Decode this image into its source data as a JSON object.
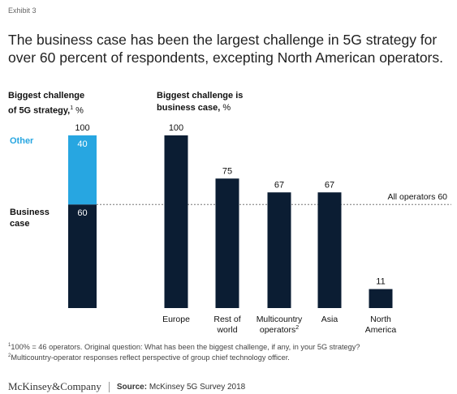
{
  "exhibit": "Exhibit 3",
  "title": "The business case has been the largest challenge in 5G strategy for over 60 percent of respondents, excepting North American operators.",
  "left_panel": {
    "heading_line1": "Biggest challenge",
    "heading_line2": "of 5G strategy,",
    "heading_sup": "1",
    "heading_unit": " %"
  },
  "right_panel": {
    "heading_line1": "Biggest challenge is",
    "heading_line2": "business case,",
    "heading_unit": " %"
  },
  "footnotes": {
    "fn1_marker": "1",
    "fn1": "100% = 46 operators. Original question: What has been the biggest challenge, if any, in your 5G strategy?",
    "fn2_marker": "2",
    "fn2": "Multicountry-operator responses reflect perspective of group chief technology officer."
  },
  "footer": {
    "brand": "McKinsey&Company",
    "source_label": "Source:",
    "source_text": "McKinsey 5G Survey 2018"
  },
  "colors": {
    "navy": "#0b1d33",
    "cyan": "#27a6e1",
    "other_label": "#27a6e1",
    "text": "#111111"
  },
  "chart_data": [
    {
      "type": "bar",
      "stacked": true,
      "categories": [
        ""
      ],
      "ylim": [
        0,
        100
      ],
      "total_label": "100",
      "series": [
        {
          "name": "Business case",
          "values": [
            60
          ],
          "label": "60",
          "color": "#0b1d33",
          "legend_lines": [
            "Business",
            "case"
          ]
        },
        {
          "name": "Other",
          "values": [
            40
          ],
          "label": "40",
          "color": "#27a6e1",
          "legend_lines": [
            "Other"
          ]
        }
      ]
    },
    {
      "type": "bar",
      "categories": [
        {
          "label_lines": [
            "Europe"
          ],
          "sup": ""
        },
        {
          "label_lines": [
            "Rest of",
            "world"
          ],
          "sup": ""
        },
        {
          "label_lines": [
            "Multicountry",
            "operators"
          ],
          "sup": "2"
        },
        {
          "label_lines": [
            "Asia"
          ],
          "sup": ""
        },
        {
          "label_lines": [
            "North",
            "America"
          ],
          "sup": ""
        }
      ],
      "values": [
        100,
        75,
        67,
        67,
        11
      ],
      "ylim": [
        0,
        100
      ],
      "reference_line": {
        "label": "All operators",
        "value": 60,
        "value_label": "60"
      },
      "color": "#0b1d33"
    }
  ]
}
